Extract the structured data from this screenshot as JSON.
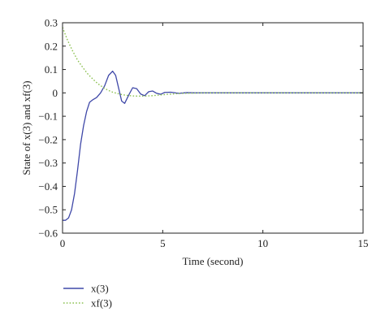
{
  "chart_data": {
    "type": "line",
    "title": "",
    "xlabel": "Time (second)",
    "ylabel": "State of x(3) and xf(3)",
    "xlim": [
      0,
      15
    ],
    "ylim": [
      -0.6,
      0.3
    ],
    "xticks": [
      0,
      5,
      10,
      15
    ],
    "yticks": [
      0.3,
      0.2,
      0.1,
      0,
      -0.1,
      -0.2,
      -0.3,
      -0.4,
      -0.5,
      -0.6
    ],
    "ytick_labels": [
      "0.3",
      "0.2",
      "0.1",
      "0",
      "−0.1",
      "−0.2",
      "−0.3",
      "−0.4",
      "−0.5",
      "−0.6"
    ],
    "grid": false,
    "legend_position": "bottom-left, below plot",
    "series": [
      {
        "name": "x(3)",
        "color": "#3f48a8",
        "line_style": "solid",
        "x": [
          0,
          0.15,
          0.3,
          0.45,
          0.6,
          0.75,
          0.9,
          1.05,
          1.2,
          1.35,
          1.5,
          1.7,
          1.9,
          2.1,
          2.3,
          2.5,
          2.65,
          2.8,
          2.95,
          3.1,
          3.3,
          3.5,
          3.7,
          3.9,
          4.1,
          4.3,
          4.5,
          4.7,
          4.9,
          5.1,
          5.4,
          5.8,
          6.2,
          6.6,
          7,
          8,
          9,
          10,
          11,
          12,
          13,
          14,
          15
        ],
        "y": [
          -0.545,
          -0.545,
          -0.535,
          -0.5,
          -0.43,
          -0.33,
          -0.22,
          -0.14,
          -0.08,
          -0.04,
          -0.03,
          -0.02,
          0.0,
          0.03,
          0.075,
          0.093,
          0.075,
          0.02,
          -0.035,
          -0.045,
          -0.01,
          0.022,
          0.018,
          -0.005,
          -0.012,
          0.005,
          0.008,
          -0.002,
          -0.006,
          0.002,
          0.003,
          -0.002,
          0.001,
          0.0,
          0.0,
          0.0,
          0.0,
          0.0,
          0.0,
          0.0,
          0.0,
          0.0,
          0.0
        ]
      },
      {
        "name": "xf(3)",
        "color": "#8cc152",
        "line_style": "dotted",
        "x": [
          0,
          0.25,
          0.5,
          0.75,
          1,
          1.25,
          1.5,
          1.75,
          2,
          2.25,
          2.5,
          2.75,
          3,
          3.25,
          3.5,
          3.75,
          4,
          4.25,
          4.5,
          4.75,
          5,
          5.25,
          5.5,
          5.75,
          6,
          6.5,
          7,
          8,
          9,
          10,
          11,
          12,
          13,
          14,
          15
        ],
        "y": [
          0.28,
          0.225,
          0.18,
          0.14,
          0.11,
          0.082,
          0.06,
          0.04,
          0.025,
          0.012,
          0.003,
          -0.003,
          -0.008,
          -0.011,
          -0.013,
          -0.014,
          -0.014,
          -0.013,
          -0.012,
          -0.01,
          -0.008,
          -0.006,
          -0.005,
          -0.003,
          -0.002,
          -0.001,
          0.0,
          0.0,
          0.0,
          0.0,
          0.0,
          0.0,
          0.0,
          0.0,
          0.0
        ]
      }
    ]
  }
}
